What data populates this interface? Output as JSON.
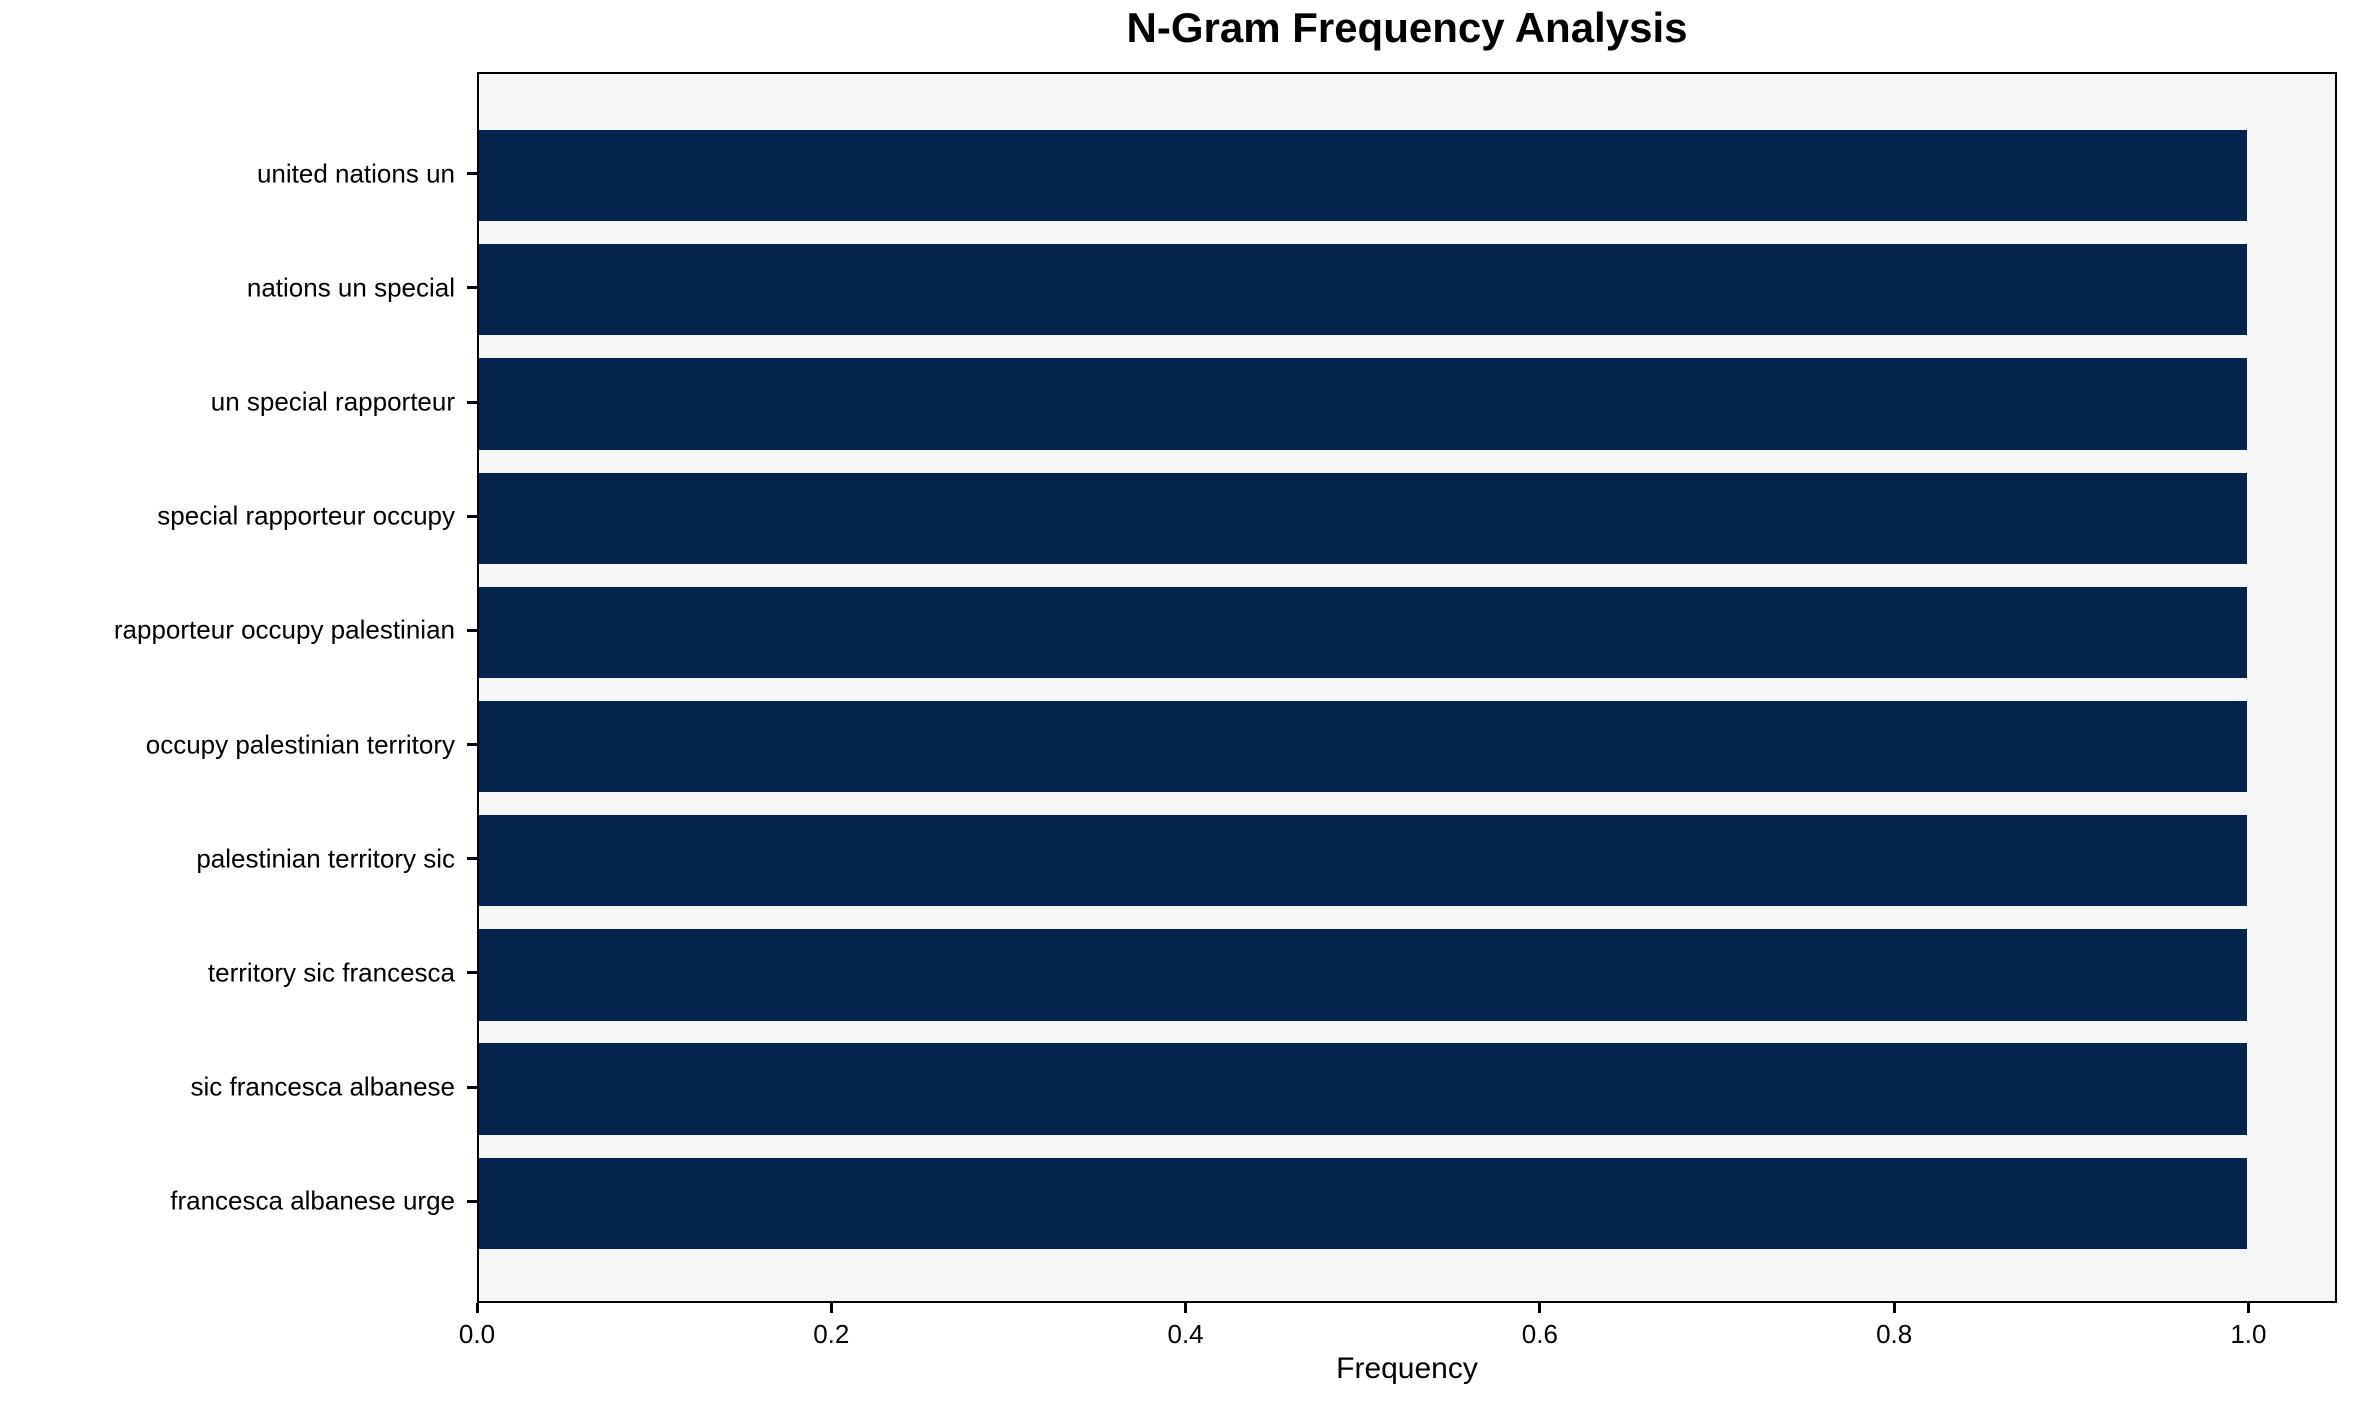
{
  "colors": {
    "bar": "#04244e",
    "plot_bg": "#f6f6f6",
    "page_bg": "#ffffff",
    "spine": "#000000",
    "text": "#000000"
  },
  "chart_data": {
    "type": "bar",
    "orientation": "horizontal",
    "title": "N-Gram Frequency Analysis",
    "xlabel": "Frequency",
    "ylabel": "",
    "categories": [
      "united nations un",
      "nations un special",
      "un special rapporteur",
      "special rapporteur occupy",
      "rapporteur occupy palestinian",
      "occupy palestinian territory",
      "palestinian territory sic",
      "territory sic francesca",
      "sic francesca albanese",
      "francesca albanese urge"
    ],
    "values": [
      1.0,
      1.0,
      1.0,
      1.0,
      1.0,
      1.0,
      1.0,
      1.0,
      1.0,
      1.0
    ],
    "xticks": [
      0.0,
      0.2,
      0.4,
      0.6,
      0.8,
      1.0
    ],
    "xtick_labels": [
      "0.0",
      "0.2",
      "0.4",
      "0.6",
      "0.8",
      "1.0"
    ],
    "xlim": [
      0,
      1.05
    ],
    "grid": false,
    "legend": null
  }
}
